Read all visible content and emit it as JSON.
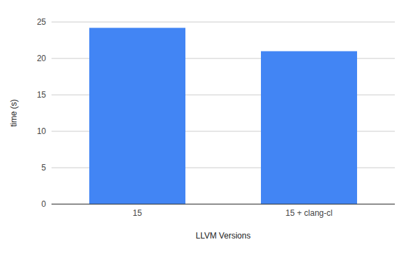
{
  "chart_data": {
    "type": "bar",
    "categories": [
      "15",
      "15 + clang-cl"
    ],
    "values": [
      24.2,
      21.0
    ],
    "color": "#4285f4",
    "xlabel": "LLVM Versions",
    "ylabel": "time (s)",
    "ylim": [
      0,
      25
    ],
    "yticks": [
      0,
      5,
      10,
      15,
      20,
      25
    ],
    "grid": true
  }
}
